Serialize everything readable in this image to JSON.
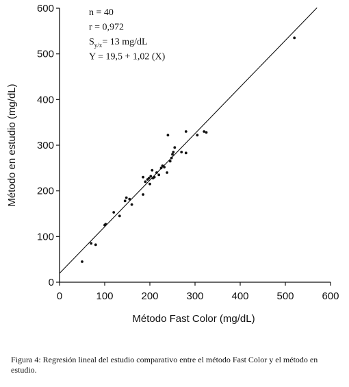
{
  "chart_data": {
    "type": "scatter",
    "x_label": "Método Fast Color  (mg/dL)",
    "y_label": "Método en estudio  (mg/dL)",
    "x": [
      50,
      70,
      80,
      100,
      102,
      120,
      133,
      145,
      148,
      155,
      160,
      185,
      185,
      190,
      195,
      198,
      200,
      202,
      205,
      207,
      210,
      215,
      220,
      225,
      228,
      232,
      238,
      240,
      245,
      248,
      250,
      252,
      255,
      270,
      280,
      280,
      305,
      320,
      325,
      520
    ],
    "values": [
      45,
      85,
      82,
      125,
      127,
      153,
      145,
      178,
      185,
      182,
      170,
      192,
      230,
      220,
      225,
      228,
      215,
      232,
      245,
      228,
      230,
      240,
      235,
      250,
      255,
      252,
      240,
      322,
      265,
      272,
      280,
      285,
      295,
      285,
      330,
      283,
      322,
      330,
      328,
      535
    ],
    "color": "#111111",
    "fit_line": {
      "x": [
        0,
        570
      ],
      "y": [
        19.5,
        601
      ]
    },
    "xlim": [
      0,
      600
    ],
    "xticks": [
      0,
      100,
      200,
      300,
      400,
      500,
      600
    ],
    "ylim": [
      0,
      600
    ],
    "yticks": [
      0,
      100,
      200,
      300,
      400,
      500,
      600
    ],
    "annotations": [
      {
        "text": "n = 40"
      },
      {
        "text": "r = 0,972"
      },
      {
        "text": "S",
        "sub": "y/x",
        "tail": "= 13 mg/dL"
      },
      {
        "text": "Y = 19,5 + 1,02  (X)"
      }
    ]
  },
  "caption": "Figura 4: Regresión lineal del estudio comparativo entre el método Fast Color y el método en estudio."
}
